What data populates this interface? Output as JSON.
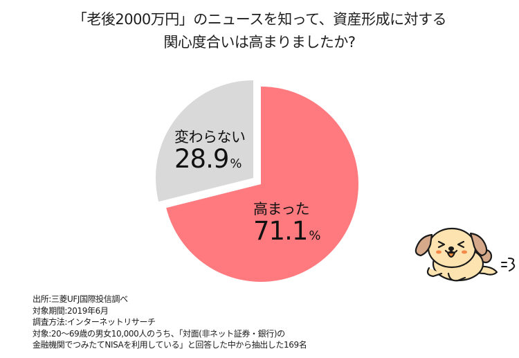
{
  "title": {
    "line1": "「老後2000万円」のニュースを知って、資産形成に対する",
    "line2": "関心度合いは高まりましたか?"
  },
  "chart_data": {
    "type": "pie",
    "title": "「老後2000万円」のニュースを知って、資産形成に対する関心度合いは高まりましたか?",
    "categories": [
      "高まった",
      "変わらない"
    ],
    "values": [
      71.1,
      28.9
    ],
    "unit": "%",
    "colors": [
      "#FF7A7F",
      "#D9D9D9"
    ],
    "exploded": [
      "変わらない"
    ],
    "legend": "none (labels inside slices)"
  },
  "labels": {
    "slice_up": {
      "category": "高まった",
      "value": "71.1",
      "unit": "%"
    },
    "slice_same": {
      "category": "変わらない",
      "value": "28.9",
      "unit": "%"
    }
  },
  "notes": [
    "出所:三菱UFJ国際投信調べ",
    "対象期間:2019年6月",
    "調査方法:インターネットリサーチ",
    "対象:20～69歳の男女10,000人のうち、「対面(非ネット証券・銀行)の",
    "金融機関でつみたてNISAを利用している」と回答した中から抽出した169名"
  ],
  "illustration": {
    "name": "running-dog-mascot",
    "effect": "=3"
  }
}
